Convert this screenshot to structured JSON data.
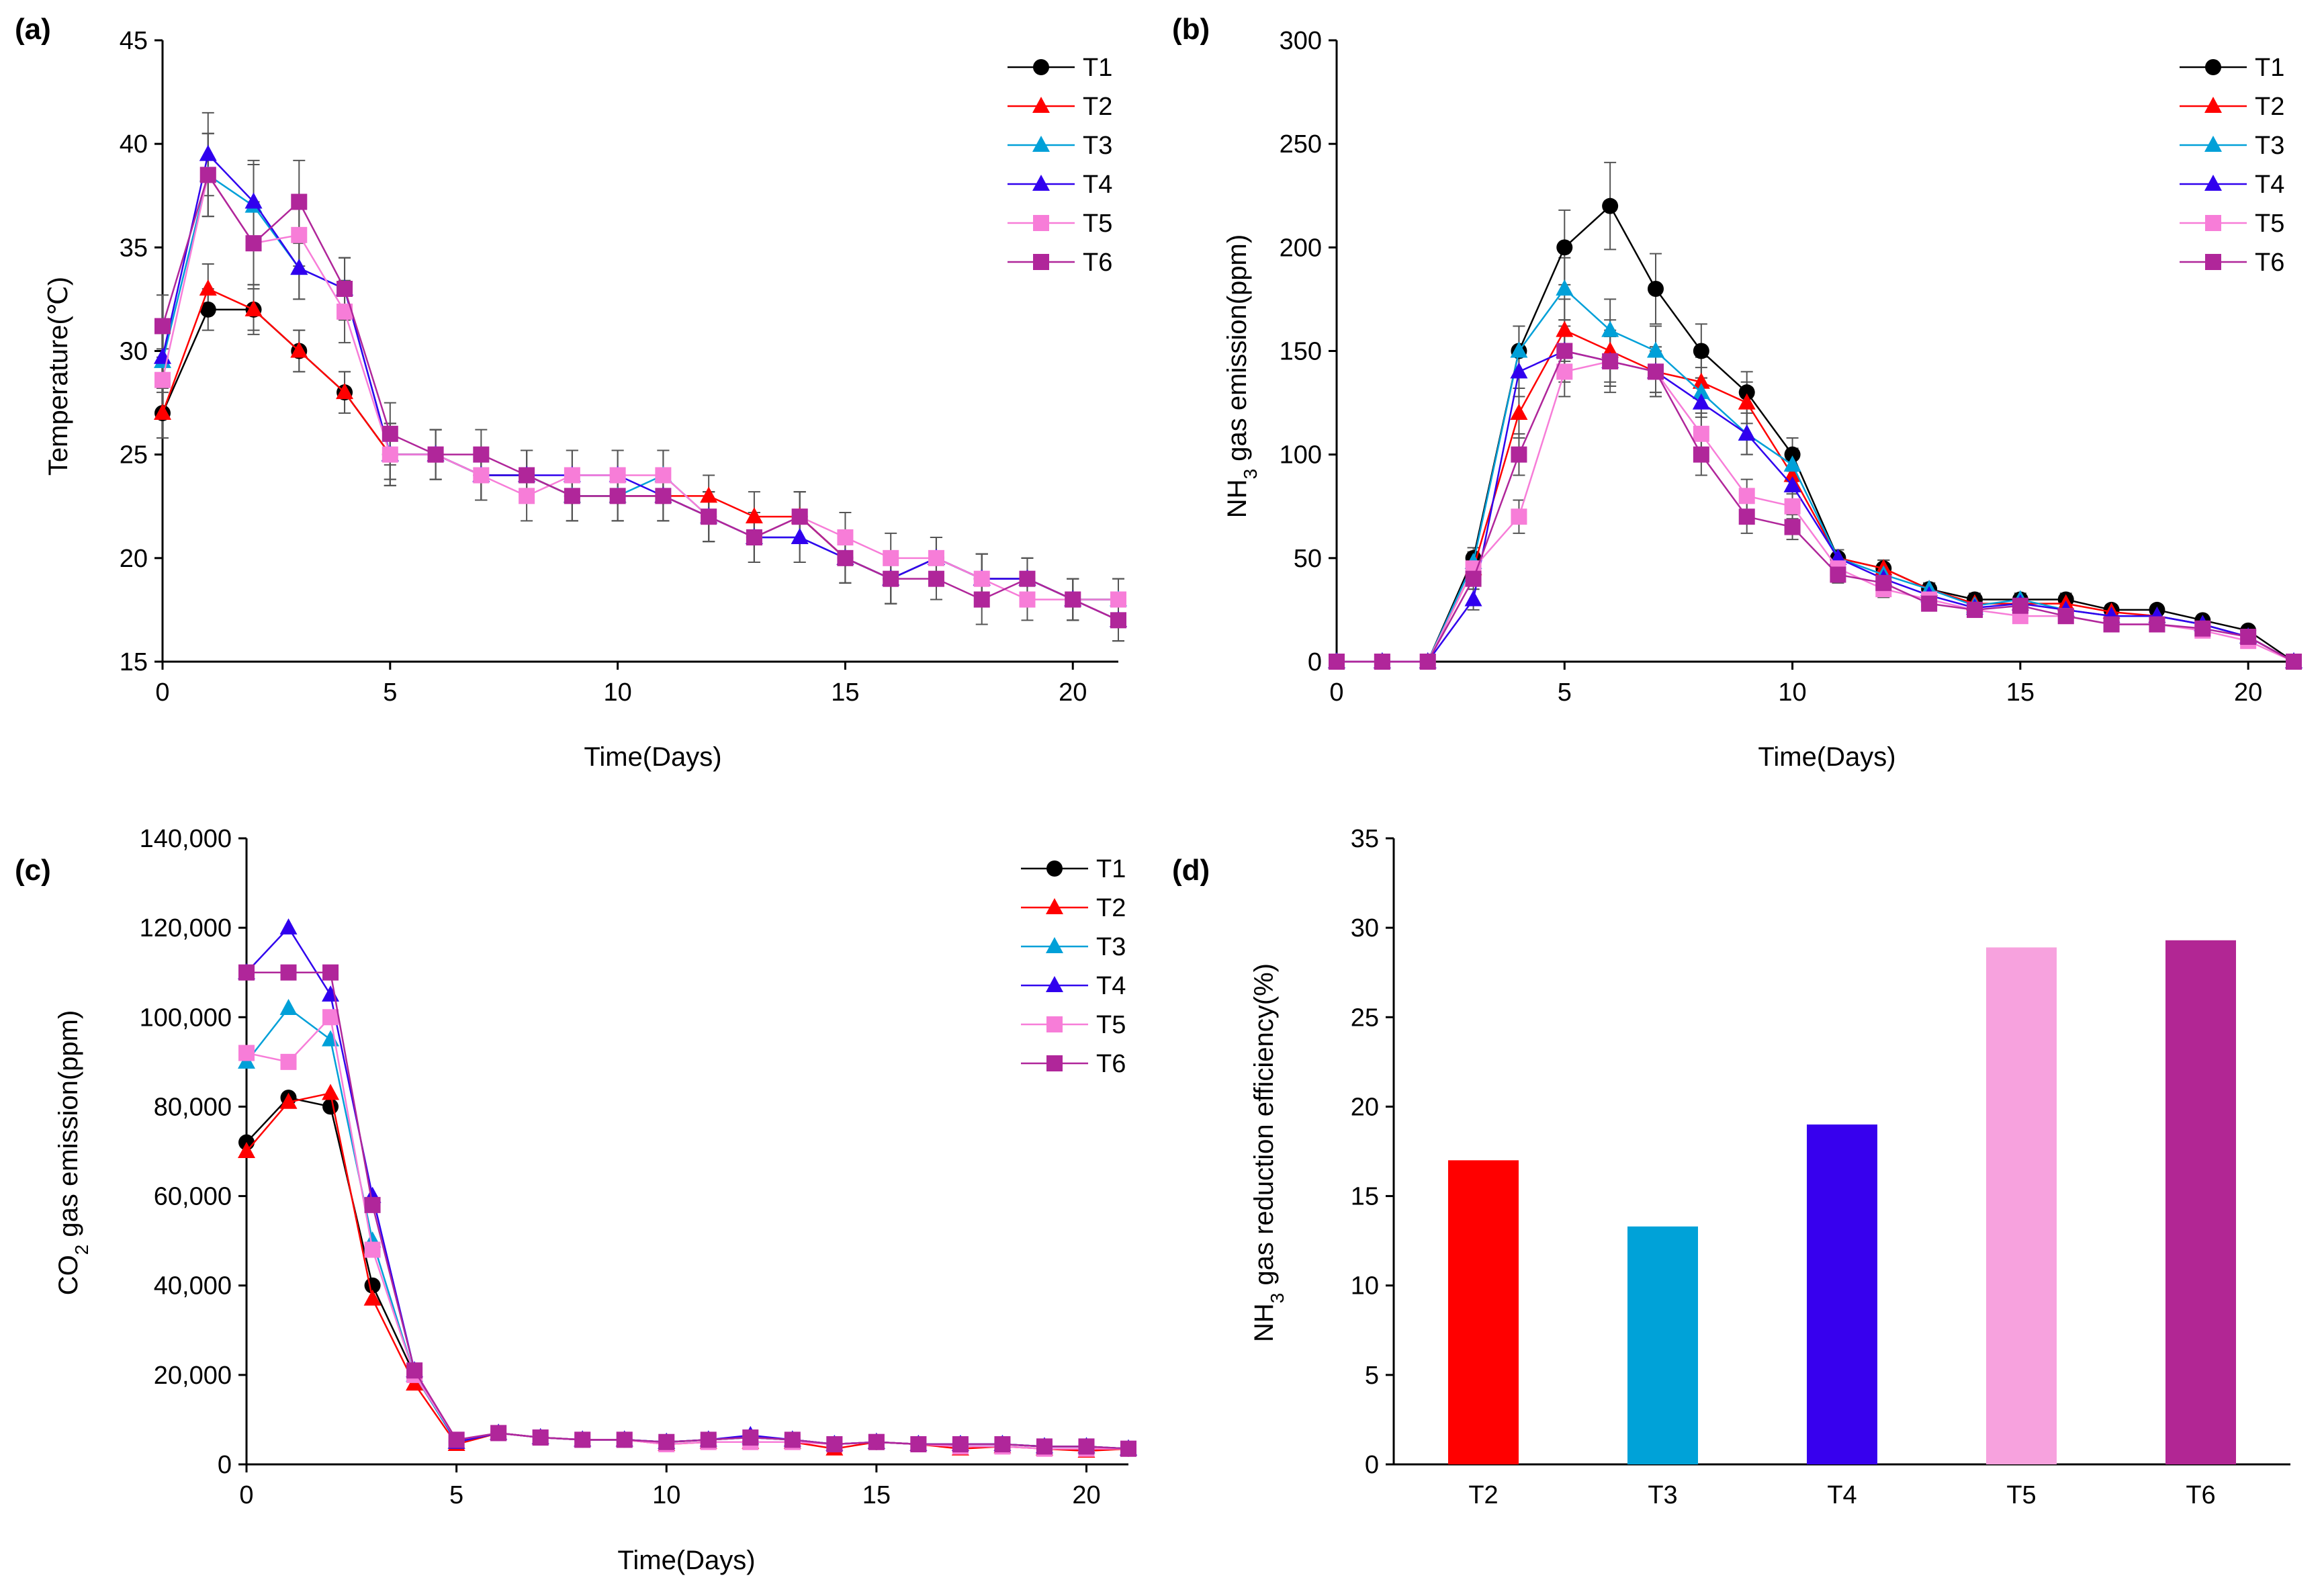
{
  "colors": {
    "T1": "#000000",
    "T2": "#ff0000",
    "T3": "#00a0d8",
    "T4": "#3000ee",
    "T5": "#f77dd8",
    "T6": "#b0269a",
    "axis": "#000000",
    "errorbar": "#555555",
    "barT2": "#ff0000",
    "barT3": "#00a2d8",
    "barT4": "#3700ee",
    "barT5": "#f7a2de",
    "barT6": "#b22694"
  },
  "markers": {
    "T1": "circle",
    "T2": "triangle",
    "T3": "triangle",
    "T4": "triangle",
    "T5": "square",
    "T6": "square"
  },
  "chart_data": [
    {
      "id": "a",
      "panel_label": "(a)",
      "type": "line",
      "xlabel": "Time(Days)",
      "ylabel": "Temperature(℃)",
      "xlim": [
        0,
        21
      ],
      "ylim": [
        15,
        45
      ],
      "xticks": [
        0,
        5,
        10,
        15,
        20
      ],
      "yticks": [
        15,
        20,
        25,
        30,
        35,
        40,
        45
      ],
      "ytick_labels": [
        "15",
        "20",
        "25",
        "30",
        "35",
        "40",
        "45"
      ],
      "legend": [
        "T1",
        "T2",
        "T3",
        "T4",
        "T5",
        "T6"
      ],
      "error_bars": true,
      "x": [
        0,
        1,
        2,
        3,
        4,
        5,
        6,
        7,
        8,
        9,
        10,
        11,
        12,
        13,
        14,
        15,
        16,
        17,
        18,
        19,
        20,
        21
      ],
      "series": [
        {
          "name": "T1",
          "values": [
            27,
            32,
            32,
            30,
            28,
            25,
            25,
            24,
            24,
            23,
            23,
            23,
            22,
            21,
            22,
            20,
            19,
            20,
            19,
            19,
            18,
            18
          ],
          "errors": [
            1.2,
            1.0,
            1.0,
            1.0,
            1.0,
            1.2,
            1.2,
            1.2,
            1.2,
            1.2,
            1.2,
            1.2,
            1.2,
            1.2,
            1.2,
            1.2,
            1.2,
            1.0,
            1.2,
            1.0,
            1.0,
            1.0
          ]
        },
        {
          "name": "T2",
          "values": [
            27,
            33,
            32,
            30,
            28,
            25,
            25,
            24,
            24,
            23,
            23,
            23,
            23,
            22,
            22,
            20,
            19,
            20,
            19,
            19,
            18,
            17
          ],
          "errors": [
            1.2,
            1.2,
            1.2,
            1.0,
            1.0,
            1.2,
            1.2,
            1.2,
            1.2,
            1.2,
            1.2,
            1.2,
            1.0,
            1.2,
            1.2,
            1.2,
            1.2,
            1.0,
            1.2,
            1.0,
            1.0,
            1.0
          ]
        },
        {
          "name": "T3",
          "values": [
            29.5,
            38.5,
            37,
            34,
            33,
            25,
            25,
            24,
            24,
            23,
            23,
            24,
            22,
            21,
            21,
            20,
            19,
            20,
            19,
            19,
            18,
            18
          ],
          "errors": [
            1.5,
            2.0,
            2.0,
            1.5,
            1.5,
            1.5,
            1.2,
            1.2,
            1.2,
            1.2,
            1.2,
            1.2,
            1.2,
            1.2,
            1.2,
            1.2,
            1.2,
            1.0,
            1.2,
            1.0,
            1.0,
            1.0
          ]
        },
        {
          "name": "T4",
          "values": [
            29.7,
            39.5,
            37.2,
            34,
            33,
            25,
            25,
            24,
            24,
            24,
            24,
            23,
            22,
            21,
            21,
            20,
            19,
            20,
            19,
            19,
            18,
            17
          ],
          "errors": [
            1.5,
            2.0,
            2.0,
            1.5,
            1.5,
            1.5,
            1.2,
            1.2,
            1.2,
            1.2,
            1.2,
            1.2,
            1.2,
            1.2,
            1.2,
            1.2,
            1.2,
            1.0,
            1.2,
            1.0,
            1.0,
            1.0
          ]
        },
        {
          "name": "T5",
          "values": [
            28.6,
            38.5,
            35.2,
            35.6,
            31.9,
            25,
            25,
            24,
            23,
            24,
            24,
            24,
            22,
            21,
            22,
            21,
            20,
            20,
            19,
            18,
            18,
            18
          ],
          "errors": [
            1.5,
            2.0,
            2.0,
            1.5,
            1.5,
            1.5,
            1.2,
            1.2,
            1.2,
            1.2,
            1.2,
            1.2,
            1.2,
            1.2,
            1.2,
            1.2,
            1.2,
            1.0,
            1.2,
            1.0,
            1.0,
            1.0
          ]
        },
        {
          "name": "T6",
          "values": [
            31.2,
            38.5,
            35.2,
            37.2,
            33,
            26,
            25,
            25,
            24,
            23,
            23,
            23,
            22,
            21,
            22,
            20,
            19,
            19,
            18,
            19,
            18,
            17
          ],
          "errors": [
            1.5,
            2.0,
            2.0,
            2.0,
            1.5,
            1.5,
            1.2,
            1.2,
            1.2,
            1.2,
            1.2,
            1.2,
            1.2,
            1.2,
            1.2,
            1.2,
            1.2,
            1.0,
            1.2,
            1.0,
            1.0,
            1.0
          ]
        }
      ]
    },
    {
      "id": "b",
      "panel_label": "(b)",
      "type": "line",
      "xlabel": "Time(Days)",
      "ylabel": "NH₃ gas emission(ppm)",
      "xlim": [
        0,
        21
      ],
      "ylim": [
        0,
        300
      ],
      "xticks": [
        0,
        5,
        10,
        15,
        20
      ],
      "yticks": [
        0,
        50,
        100,
        150,
        200,
        250,
        300
      ],
      "ytick_labels": [
        "0",
        "50",
        "100",
        "150",
        "200",
        "250",
        "300"
      ],
      "legend": [
        "T1",
        "T2",
        "T3",
        "T4",
        "T5",
        "T6"
      ],
      "error_bars": true,
      "x": [
        0,
        1,
        2,
        3,
        4,
        5,
        6,
        7,
        8,
        9,
        10,
        11,
        12,
        13,
        14,
        15,
        16,
        17,
        18,
        19,
        20,
        21
      ],
      "series": [
        {
          "name": "T1",
          "values": [
            0,
            0,
            0,
            50,
            150,
            200,
            220,
            180,
            150,
            130,
            100,
            50,
            45,
            35,
            30,
            30,
            30,
            25,
            25,
            20,
            15,
            0
          ],
          "errors": [
            0,
            0,
            0,
            5,
            12,
            18,
            21,
            17,
            13,
            10,
            8,
            4,
            4,
            3,
            3,
            3,
            3,
            2,
            2,
            2,
            2,
            0
          ]
        },
        {
          "name": "T2",
          "values": [
            0,
            0,
            0,
            45,
            120,
            160,
            150,
            140,
            135,
            125,
            90,
            50,
            45,
            35,
            28,
            28,
            28,
            24,
            22,
            18,
            12,
            0
          ],
          "errors": [
            0,
            0,
            0,
            5,
            12,
            15,
            15,
            12,
            12,
            10,
            8,
            4,
            4,
            3,
            3,
            3,
            3,
            2,
            2,
            2,
            2,
            0
          ]
        },
        {
          "name": "T3",
          "values": [
            0,
            0,
            0,
            48,
            150,
            180,
            160,
            150,
            130,
            110,
            95,
            50,
            42,
            35,
            27,
            30,
            25,
            22,
            22,
            18,
            12,
            0
          ],
          "errors": [
            0,
            0,
            0,
            5,
            12,
            15,
            15,
            12,
            12,
            10,
            8,
            4,
            4,
            3,
            3,
            3,
            3,
            2,
            2,
            2,
            2,
            0
          ]
        },
        {
          "name": "T4",
          "values": [
            0,
            0,
            0,
            30,
            140,
            150,
            145,
            140,
            125,
            110,
            85,
            50,
            40,
            32,
            26,
            28,
            25,
            22,
            22,
            18,
            12,
            0
          ],
          "errors": [
            0,
            0,
            0,
            5,
            12,
            15,
            15,
            12,
            12,
            10,
            8,
            4,
            4,
            3,
            3,
            3,
            3,
            2,
            2,
            2,
            2,
            0
          ]
        },
        {
          "name": "T5",
          "values": [
            0,
            0,
            0,
            45,
            70,
            140,
            145,
            140,
            110,
            80,
            75,
            45,
            35,
            30,
            25,
            22,
            22,
            18,
            18,
            15,
            10,
            0
          ],
          "errors": [
            0,
            0,
            0,
            5,
            8,
            12,
            12,
            10,
            10,
            8,
            6,
            4,
            4,
            3,
            3,
            3,
            3,
            2,
            2,
            2,
            2,
            0
          ]
        },
        {
          "name": "T6",
          "values": [
            0,
            0,
            0,
            40,
            100,
            150,
            145,
            140,
            100,
            70,
            65,
            42,
            38,
            28,
            25,
            27,
            22,
            18,
            18,
            16,
            12,
            0
          ],
          "errors": [
            0,
            0,
            0,
            5,
            10,
            12,
            12,
            10,
            10,
            8,
            6,
            4,
            4,
            3,
            3,
            3,
            3,
            2,
            2,
            2,
            2,
            0
          ]
        }
      ]
    },
    {
      "id": "c",
      "panel_label": "(c)",
      "type": "line",
      "xlabel": "Time(Days)",
      "ylabel": "CO₂ gas emission(ppm)",
      "xlim": [
        0,
        21
      ],
      "ylim": [
        0,
        140000
      ],
      "xticks": [
        0,
        5,
        10,
        15,
        20
      ],
      "yticks": [
        0,
        20000,
        40000,
        60000,
        80000,
        100000,
        120000,
        140000
      ],
      "ytick_labels": [
        "0",
        "20,000",
        "40,000",
        "60,000",
        "80,000",
        "100,000",
        "120,000",
        "140,000"
      ],
      "legend": [
        "T1",
        "T2",
        "T3",
        "T4",
        "T5",
        "T6"
      ],
      "error_bars": false,
      "x": [
        0,
        1,
        2,
        3,
        4,
        5,
        6,
        7,
        8,
        9,
        10,
        11,
        12,
        13,
        14,
        15,
        16,
        17,
        18,
        19,
        20,
        21
      ],
      "series": [
        {
          "name": "T1",
          "values": [
            72000,
            82000,
            80000,
            40000,
            20000,
            5000,
            7000,
            6000,
            5500,
            5500,
            5000,
            5500,
            6000,
            5500,
            4500,
            5000,
            4500,
            4500,
            4500,
            4000,
            4000,
            3500
          ]
        },
        {
          "name": "T2",
          "values": [
            70000,
            81000,
            83000,
            37000,
            18000,
            4500,
            7000,
            6000,
            5500,
            5500,
            4500,
            5000,
            5000,
            5000,
            3500,
            5000,
            4500,
            3500,
            4000,
            3500,
            3000,
            3500
          ]
        },
        {
          "name": "T3",
          "values": [
            90000,
            102000,
            95000,
            50000,
            20000,
            5000,
            7000,
            6000,
            5500,
            5500,
            5000,
            5500,
            6000,
            5500,
            4500,
            5000,
            4500,
            4500,
            4500,
            4000,
            4000,
            3500
          ]
        },
        {
          "name": "T4",
          "values": [
            110000,
            120000,
            105000,
            60000,
            21000,
            5000,
            7000,
            6000,
            5500,
            5500,
            5000,
            5500,
            6500,
            5500,
            4500,
            5000,
            4500,
            4500,
            4500,
            4000,
            4000,
            3500
          ]
        },
        {
          "name": "T5",
          "values": [
            92000,
            90000,
            100000,
            48000,
            20000,
            5500,
            7000,
            6000,
            5500,
            5500,
            4500,
            5000,
            5000,
            5000,
            4500,
            5000,
            4500,
            4000,
            4000,
            3500,
            3500,
            3500
          ]
        },
        {
          "name": "T6",
          "values": [
            110000,
            110000,
            110000,
            58000,
            21000,
            5500,
            7000,
            6000,
            5500,
            5500,
            5000,
            5500,
            6000,
            5500,
            4500,
            5000,
            4500,
            4500,
            4500,
            4000,
            4000,
            3500
          ]
        }
      ]
    },
    {
      "id": "d",
      "panel_label": "(d)",
      "type": "bar",
      "xlabel": "",
      "ylabel": "NH₃ gas reduction efficiency(%)",
      "ylim": [
        0,
        35
      ],
      "yticks": [
        0,
        5,
        10,
        15,
        20,
        25,
        30,
        35
      ],
      "ytick_labels": [
        "0",
        "5",
        "10",
        "15",
        "20",
        "25",
        "30",
        "35"
      ],
      "categories": [
        "T2",
        "T3",
        "T4",
        "T5",
        "T6"
      ],
      "values": [
        17,
        13.3,
        19,
        28.9,
        29.3
      ]
    }
  ]
}
